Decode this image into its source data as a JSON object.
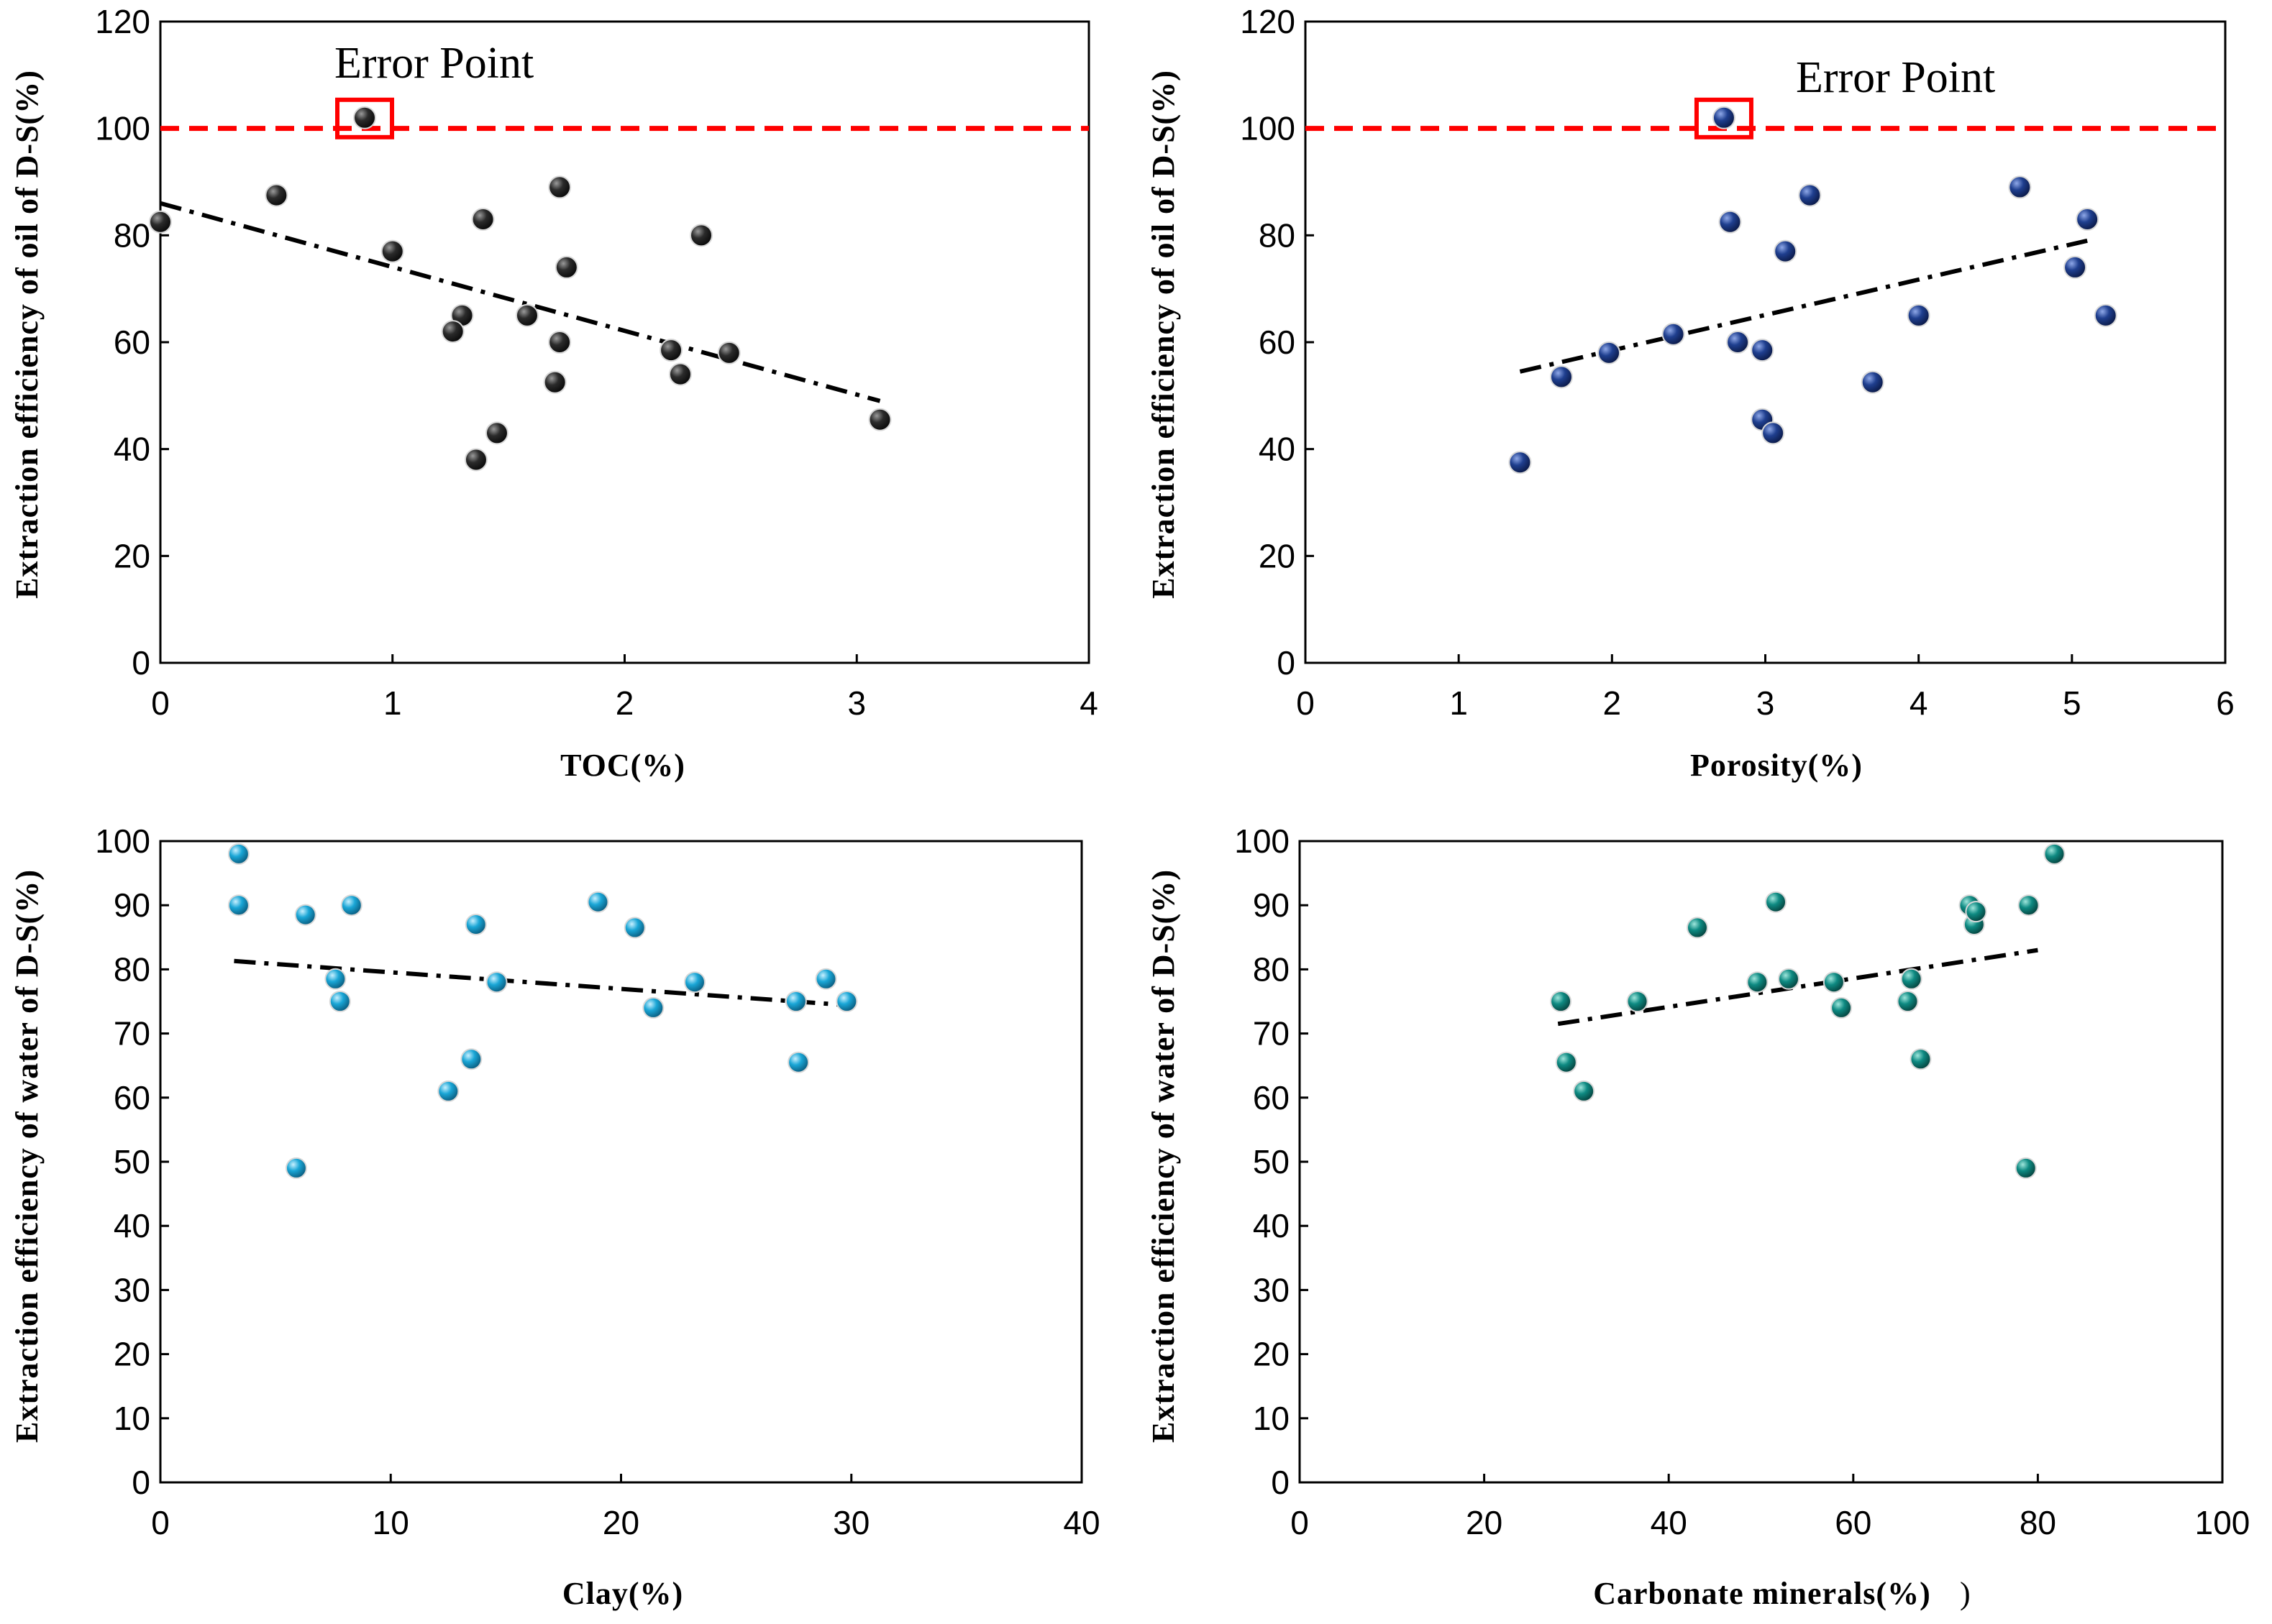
{
  "chart_data": [
    {
      "type": "scatter",
      "xlabel": "TOC(%)",
      "ylabel": "Extraction efficiency of  oil of D-S(%)",
      "xlim": [
        0,
        4
      ],
      "ylim": [
        0,
        120
      ],
      "xticks": [
        "0",
        "1",
        "2",
        "3",
        "4"
      ],
      "yticks": [
        "0",
        "20",
        "40",
        "60",
        "80",
        "100",
        "120"
      ],
      "marker_color": "#2b2b2b",
      "annotation": "Error Point",
      "reference_line_y": 100,
      "reference_line_color": "#ff0000",
      "error_point": {
        "x": 0.88,
        "y": 102
      },
      "trendline": {
        "x": [
          0,
          3.1
        ],
        "y": [
          86,
          49
        ]
      },
      "points": {
        "x": [
          0,
          0.5,
          1.0,
          1.3,
          1.26,
          1.39,
          1.58,
          1.45,
          1.36,
          1.7,
          1.72,
          1.75,
          1.72,
          2.2,
          2.24,
          2.33,
          2.45,
          3.1
        ],
        "y": [
          82.5,
          87.5,
          77,
          65,
          62,
          83,
          65,
          43,
          38,
          52.5,
          60,
          74,
          89,
          58.5,
          54,
          80,
          58,
          45.5
        ]
      }
    },
    {
      "type": "scatter",
      "xlabel": "Porosity(%)",
      "ylabel": "Extraction efficiency of  oil of D-S(%)",
      "xlim": [
        0,
        6
      ],
      "ylim": [
        0,
        120
      ],
      "xticks": [
        "0",
        "1",
        "2",
        "3",
        "4",
        "5",
        "6"
      ],
      "yticks": [
        "0",
        "20",
        "40",
        "60",
        "80",
        "100",
        "120"
      ],
      "marker_color": "#1f3f8f",
      "annotation": "Error Point",
      "reference_line_y": 100,
      "reference_line_color": "#ff0000",
      "error_point": {
        "x": 2.73,
        "y": 102
      },
      "trendline": {
        "x": [
          1.4,
          5.1
        ],
        "y": [
          54.5,
          79
        ]
      },
      "points": {
        "x": [
          1.4,
          1.67,
          1.98,
          2.4,
          2.77,
          2.82,
          2.98,
          2.98,
          3.05,
          3.13,
          3.29,
          3.7,
          4.0,
          4.66,
          5.02,
          5.1,
          5.22
        ],
        "y": [
          37.5,
          53.5,
          58,
          61.5,
          82.5,
          60,
          58.5,
          45.5,
          43,
          77,
          87.5,
          52.5,
          65,
          89,
          74,
          83,
          65
        ]
      }
    },
    {
      "type": "scatter",
      "xlabel": "Clay(%)",
      "ylabel": "Extraction efficiency of  water of D-S(%)",
      "xlim": [
        0,
        40
      ],
      "ylim": [
        0,
        100
      ],
      "xticks": [
        "0",
        "10",
        "20",
        "30",
        "40"
      ],
      "yticks": [
        "0",
        "10",
        "20",
        "30",
        "40",
        "50",
        "60",
        "70",
        "80",
        "90",
        "100"
      ],
      "marker_color": "#1aa6d6",
      "trendline": {
        "x": [
          3.2,
          29.5
        ],
        "y": [
          81.3,
          74.5
        ]
      },
      "points": {
        "x": [
          3.4,
          3.4,
          5.9,
          6.3,
          7.6,
          7.8,
          8.3,
          12.5,
          13.5,
          13.7,
          14.6,
          19.0,
          20.6,
          21.4,
          23.2,
          27.6,
          27.7,
          28.9,
          29.8
        ],
        "y": [
          98,
          90,
          49,
          88.5,
          78.5,
          75,
          90,
          61,
          66,
          87,
          78,
          90.5,
          86.5,
          74,
          78,
          75,
          65.5,
          78.5,
          75
        ]
      }
    },
    {
      "type": "scatter",
      "xlabel": "Carbonate minerals(%)",
      "xlabel_extra": ")",
      "ylabel": "Extraction efficiency of  water of D-S(%)",
      "xlim": [
        0,
        100
      ],
      "ylim": [
        0,
        100
      ],
      "xticks": [
        "0",
        "20",
        "40",
        "60",
        "80",
        "100"
      ],
      "yticks": [
        "0",
        "10",
        "20",
        "30",
        "40",
        "50",
        "60",
        "70",
        "80",
        "90",
        "100"
      ],
      "marker_color": "#0e8a82",
      "trendline": {
        "x": [
          28,
          80
        ],
        "y": [
          71.5,
          83
        ]
      },
      "points": {
        "x": [
          28.3,
          28.9,
          30.8,
          36.6,
          43.1,
          49.6,
          51.6,
          53.0,
          57.9,
          58.7,
          65.9,
          66.3,
          67.3,
          72.6,
          73.1,
          73.3,
          78.7,
          79.0,
          81.8
        ],
        "y": [
          75,
          65.5,
          61,
          75,
          86.5,
          78,
          90.5,
          78.5,
          78,
          74,
          75,
          78.5,
          66,
          90,
          87,
          89,
          49,
          90,
          98
        ]
      }
    }
  ]
}
